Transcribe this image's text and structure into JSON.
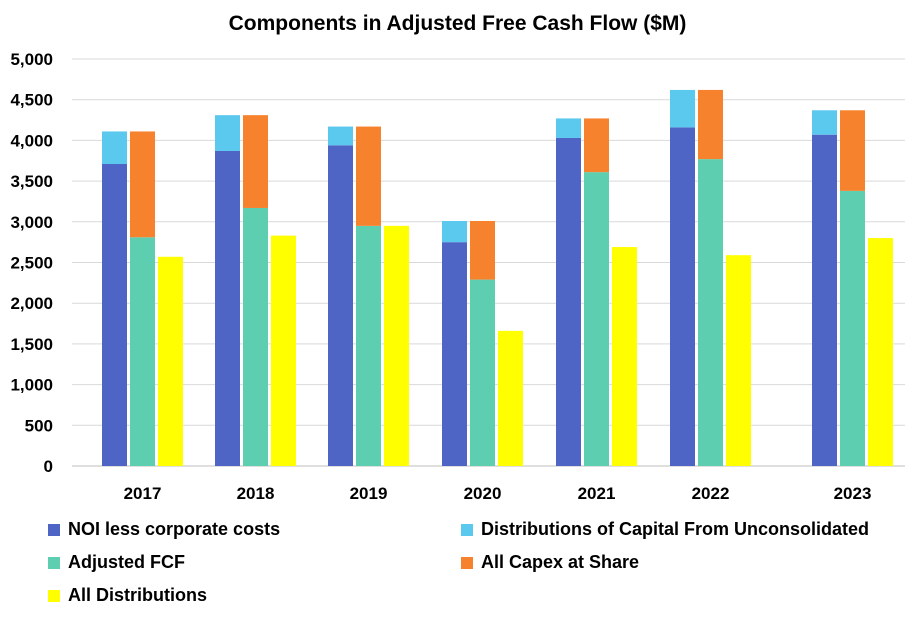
{
  "chart_data": {
    "type": "bar",
    "title": "Components in Adjusted Free Cash Flow ($M)",
    "categories": [
      "2017",
      "2018",
      "2019",
      "2020",
      "2021",
      "2022",
      "2023"
    ],
    "ylim": [
      0,
      5000
    ],
    "yticks": [
      "0",
      "500",
      "1,000",
      "1,500",
      "2,000",
      "2,500",
      "3,000",
      "3,500",
      "4,000",
      "4,500",
      "5,000"
    ],
    "grid": true,
    "legend_position": "bottom",
    "series": [
      {
        "name": "NOI less corporate costs",
        "color": "#4F65C6",
        "values": [
          3710,
          3870,
          3940,
          2750,
          4030,
          4160,
          4070
        ]
      },
      {
        "name": "Distributions of Capital From Unconsolidated",
        "color": "#5BC8EE",
        "values": [
          400,
          440,
          230,
          260,
          240,
          460,
          300
        ]
      },
      {
        "name": "Adjusted FCF",
        "color": "#5DCFB0",
        "values": [
          2810,
          3170,
          2950,
          2290,
          3610,
          3770,
          3380
        ]
      },
      {
        "name": "All Capex at Share",
        "color": "#F6822E",
        "values": [
          1300,
          1140,
          1220,
          720,
          660,
          850,
          990
        ]
      },
      {
        "name": "All Distributions",
        "color": "#FFFF00",
        "values": [
          2570,
          2830,
          2950,
          1660,
          2690,
          2590,
          2800
        ]
      }
    ]
  }
}
